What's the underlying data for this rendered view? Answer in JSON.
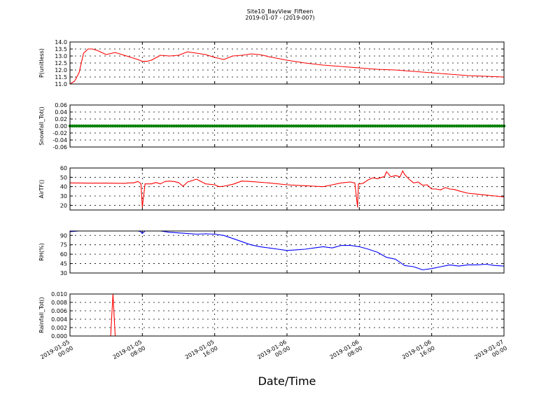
{
  "figure": {
    "title": "Site10_BayView_Fifteen",
    "subtitle": "2019-01-07 - (2019-007)",
    "xlabel": "Date/Time"
  },
  "chart_data": [
    {
      "type": "line",
      "ylabel": "P(unitless)",
      "ylim": [
        11.0,
        14.0
      ],
      "yticks": [
        11.0,
        11.5,
        12.0,
        12.5,
        13.0,
        13.5,
        14.0
      ],
      "ytick_labels": [
        "11.0",
        "11.5",
        "12.0",
        "12.5",
        "13.0",
        "13.5",
        "14.0"
      ],
      "grid": true,
      "series": [
        {
          "color": "#ff0000",
          "x": [
            0,
            0.5,
            1,
            1.5,
            2,
            2.5,
            3,
            4,
            5,
            6,
            7,
            7.5,
            8,
            8.5,
            9,
            10,
            11,
            12,
            13,
            14,
            15,
            16,
            17,
            18,
            19,
            20,
            21,
            22,
            24,
            26,
            28,
            30,
            32,
            34,
            36,
            38,
            40,
            42,
            44,
            46,
            48
          ],
          "y": [
            11.0,
            11.2,
            11.8,
            13.2,
            13.5,
            13.5,
            13.4,
            13.1,
            13.25,
            13.05,
            12.85,
            12.75,
            12.62,
            12.62,
            12.7,
            13.05,
            13.0,
            13.05,
            13.3,
            13.2,
            13.1,
            12.9,
            12.75,
            13.0,
            13.05,
            13.15,
            13.1,
            12.95,
            12.7,
            12.5,
            12.35,
            12.25,
            12.15,
            12.05,
            12.0,
            11.9,
            11.8,
            11.7,
            11.6,
            11.55,
            11.5
          ]
        }
      ]
    },
    {
      "type": "scatter",
      "ylabel": "Snowfall_Tot()",
      "ylim": [
        -0.06,
        0.06
      ],
      "yticks": [
        -0.06,
        -0.04,
        -0.02,
        0.0,
        0.02,
        0.04,
        0.06
      ],
      "ytick_labels": [
        "-0.06",
        "-0.04",
        "-0.02",
        "0.00",
        "0.02",
        "0.04",
        "0.06"
      ],
      "grid": true,
      "series": [
        {
          "color": "#008000",
          "x_start": 0,
          "x_end": 48,
          "x_step": 0.25,
          "y_constant": 0.0
        }
      ]
    },
    {
      "type": "line",
      "ylabel": "AirTF()",
      "ylim": [
        15,
        60
      ],
      "yticks": [
        20,
        30,
        40,
        50,
        60
      ],
      "ytick_labels": [
        "20",
        "30",
        "40",
        "50",
        "60"
      ],
      "grid": true,
      "series": [
        {
          "color": "#ff0000",
          "x": [
            0,
            2,
            4,
            6,
            6.5,
            7,
            7.5,
            7.7,
            7.85,
            8.0,
            8.3,
            9,
            9.5,
            10,
            10.5,
            11,
            11.5,
            12,
            12.5,
            13,
            14,
            15,
            16,
            16.5,
            17,
            18,
            19,
            20,
            22,
            24,
            26,
            27,
            28,
            29,
            30,
            31,
            31.5,
            31.8,
            31.9,
            32.1,
            32.4,
            33,
            33.5,
            34,
            34.5,
            34.8,
            35,
            35.5,
            36,
            36.5,
            36.8,
            37,
            37.5,
            38,
            38.5,
            39,
            39.5,
            40,
            40.5,
            41,
            41.5,
            42,
            42.5,
            43,
            44,
            45,
            46,
            47,
            48
          ],
          "y": [
            44,
            43.8,
            43.8,
            43.6,
            44,
            44,
            45.5,
            44.5,
            43,
            18,
            43,
            43,
            44.5,
            43,
            45.5,
            46,
            45.5,
            44.5,
            40.5,
            45,
            48,
            43,
            42,
            40,
            40.5,
            42.5,
            46,
            45.5,
            44,
            42,
            41,
            40.5,
            40,
            42,
            44,
            45,
            44,
            18,
            43,
            43,
            43.5,
            47.5,
            49.5,
            48.5,
            50,
            51,
            56,
            50.5,
            52,
            50.5,
            57,
            53,
            48,
            44,
            45,
            41.5,
            42,
            37.5,
            37.5,
            36.5,
            39,
            37.5,
            37,
            35.5,
            33,
            32,
            31,
            30,
            29
          ]
        }
      ]
    },
    {
      "type": "line",
      "ylabel": "RH(%)",
      "ylim": [
        30,
        97
      ],
      "yticks": [
        30,
        45,
        60,
        75,
        90
      ],
      "ytick_labels": [
        "30",
        "45",
        "60",
        "75",
        "90"
      ],
      "grid": true,
      "series": [
        {
          "color": "#0000ff",
          "x": [
            0,
            1,
            2,
            3,
            4,
            6,
            7.5,
            7.8,
            8.0,
            8.3,
            9,
            10,
            11,
            12,
            13,
            14,
            15,
            16,
            17,
            18,
            19,
            20,
            21,
            22,
            23,
            24,
            25,
            26,
            27,
            28,
            29,
            30,
            31,
            32,
            33,
            34,
            35,
            36,
            37,
            38,
            39,
            40,
            41,
            42,
            43,
            44,
            45,
            46,
            47,
            48
          ],
          "y": [
            96,
            97,
            97,
            97,
            97,
            97,
            97,
            96,
            93,
            97,
            97,
            97,
            95,
            94,
            93,
            92,
            92.5,
            92,
            90,
            85,
            80,
            75,
            72,
            70,
            68,
            66,
            67,
            68,
            70,
            72,
            70,
            74,
            74,
            72,
            68,
            63,
            55,
            52,
            42,
            40,
            35,
            37,
            40,
            43,
            41,
            43,
            43,
            44,
            42,
            41
          ]
        }
      ]
    },
    {
      "type": "line",
      "ylabel": "Rainfall_Tot()",
      "ylim": [
        0.0,
        0.01
      ],
      "yticks": [
        0.0,
        0.002,
        0.004,
        0.006,
        0.008,
        0.01
      ],
      "ytick_labels": [
        "0.000",
        "0.002",
        "0.004",
        "0.006",
        "0.008",
        "0.010"
      ],
      "grid": true,
      "series": [
        {
          "color": "#ff0000",
          "x": [
            0,
            4.5,
            4.6,
            4.75,
            4.9,
            5.0,
            48
          ],
          "y": [
            0,
            0,
            0.004,
            0.01,
            0.004,
            0,
            0
          ]
        }
      ]
    }
  ],
  "x_axis": {
    "range_hours": [
      0,
      48
    ],
    "tick_hours": [
      0,
      8,
      16,
      24,
      32,
      40,
      48
    ],
    "tick_labels": [
      [
        "2019-01-05",
        "00:00"
      ],
      [
        "2019-01-05",
        "08:00"
      ],
      [
        "2019-01-05",
        "16:00"
      ],
      [
        "2019-01-06",
        "00:00"
      ],
      [
        "2019-01-06",
        "08:00"
      ],
      [
        "2019-01-06",
        "16:00"
      ],
      [
        "2019-01-07",
        "00:00"
      ]
    ]
  }
}
